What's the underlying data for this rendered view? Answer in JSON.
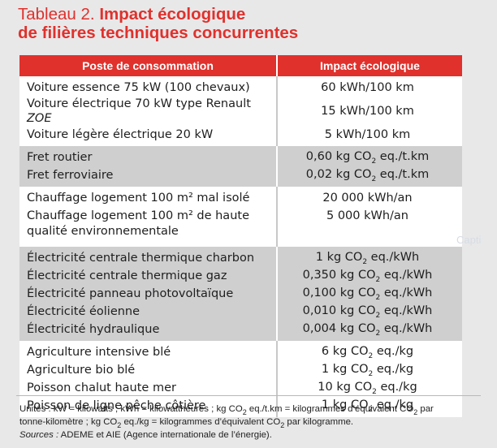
{
  "title": {
    "prefix": "Tableau 2.",
    "line1": "Impact écologique",
    "line2": "de filières techniques concurrentes"
  },
  "table": {
    "headers": [
      "Poste de consommation",
      "Impact écologique"
    ],
    "groups": [
      {
        "shade": "white",
        "rows": [
          {
            "label": "Voiture essence 75 kW (100 chevaux)",
            "value": "60 kWh/100 km"
          },
          {
            "label": "Voiture électrique 70 kW type Renault ",
            "label_italic": "ZOE",
            "value": "15 kWh/100 km"
          },
          {
            "label": "Voiture légère électrique 20 kW",
            "value": "5 kWh/100 km"
          }
        ]
      },
      {
        "shade": "gray",
        "rows": [
          {
            "label": "Fret routier",
            "value_a": "0,60 kg CO",
            "sub": "2",
            "value_b": " eq./t.km"
          },
          {
            "label": "Fret ferroviaire",
            "value_a": "0,02 kg CO",
            "sub": "2",
            "value_b": " eq./t.km"
          }
        ]
      },
      {
        "shade": "white",
        "rows": [
          {
            "label": "Chauffage logement 100 m² mal isolé",
            "value": "20 000 kWh/an"
          },
          {
            "label": "Chauffage logement 100 m² de haute qualité environnementale",
            "value": "5 000 kWh/an"
          }
        ]
      },
      {
        "shade": "gray",
        "rows": [
          {
            "label": "Électricité centrale thermique charbon",
            "value_a": "1 kg CO",
            "sub": "2",
            "value_b": " eq./kWh"
          },
          {
            "label": "Électricité centrale thermique gaz",
            "value_a": "0,350 kg CO",
            "sub": "2",
            "value_b": " eq./kWh"
          },
          {
            "label": "Électricité panneau photovoltaïque",
            "value_a": "0,100 kg CO",
            "sub": "2",
            "value_b": " eq./kWh"
          },
          {
            "label": "Électricité éolienne",
            "value_a": "0,010 kg CO",
            "sub": "2",
            "value_b": " eq./kWh"
          },
          {
            "label": "Électricité hydraulique",
            "value_a": "0,004 kg CO",
            "sub": "2",
            "value_b": " eq./kWh"
          }
        ]
      },
      {
        "shade": "white",
        "rows": [
          {
            "label": "Agriculture intensive blé",
            "value_a": "6 kg CO",
            "sub": "2",
            "value_b": " eq./kg"
          },
          {
            "label": "Agriculture bio blé",
            "value_a": "1 kg CO",
            "sub": "2",
            "value_b": " eq./kg"
          },
          {
            "label": "Poisson chalut haute mer",
            "value_a": "10 kg CO",
            "sub": "2",
            "value_b": " eq./kg"
          },
          {
            "label": "Poisson de ligne pêche côtière",
            "value_a": "1 kg CO",
            "sub": "2",
            "value_b": " eq./kg"
          }
        ]
      }
    ]
  },
  "notes": {
    "units_a": "Unités : kW = kilowatts ; kWh = kilowattheures ; kg CO",
    "units_sub1": "2",
    "units_b": " eq./t.km = kilogrammes d’équivalent CO",
    "units_sub2": "2",
    "units_c": " par",
    "units2_a": "tonne-kilomètre ; kg CO",
    "units2_sub1": "2",
    "units2_b": " eq./kg = kilogrammes d’équivalent CO",
    "units2_sub2": "2",
    "units2_c": " par kilogramme.",
    "sources_label": "Sources :",
    "sources_text": " ADEME et AIE (Agence internationale de l’énergie)."
  },
  "ghost_text": "Capti"
}
